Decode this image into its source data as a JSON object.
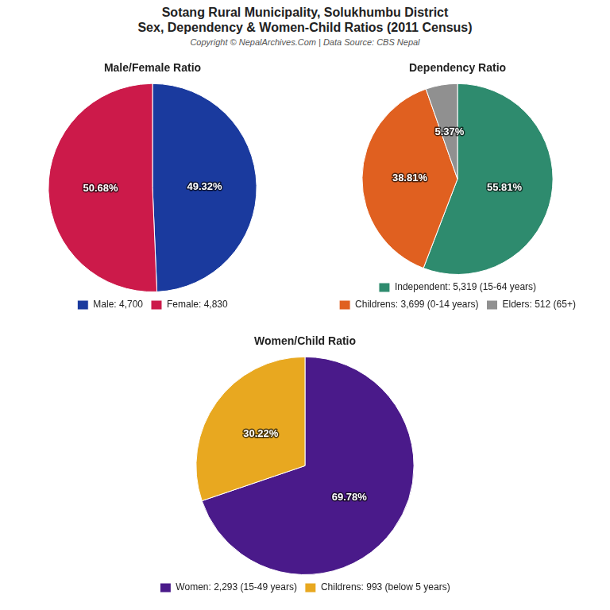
{
  "title": [
    "Sotang Rural Municipality, Solukhumbu District",
    "Sex, Dependency & Women-Child Ratios (2011 Census)"
  ],
  "subtitle": "Copyright © NepalArchives.Com | Data Source: CBS Nepal",
  "chart_data": [
    {
      "type": "pie",
      "title": "Male/Female Ratio",
      "categories": [
        "Male: 4,700",
        "Female: 4,830"
      ],
      "values": [
        49.32,
        50.68
      ],
      "value_labels": [
        "49.32%",
        "50.68%"
      ],
      "colors": [
        "#1a3a9e",
        "#cc1a4a"
      ],
      "data_labels": true,
      "legend": "bottom"
    },
    {
      "type": "pie",
      "title": "Dependency Ratio",
      "categories": [
        "Independent: 5,319 (15-64 years)",
        "Childrens: 3,699 (0-14 years)",
        "Elders: 512 (65+)"
      ],
      "values": [
        55.81,
        38.81,
        5.37
      ],
      "value_labels": [
        "55.81%",
        "38.81%",
        "5.37%"
      ],
      "colors": [
        "#2e8b6e",
        "#e06020",
        "#909090"
      ],
      "data_labels": true,
      "legend": "bottom"
    },
    {
      "type": "pie",
      "title": "Women/Child Ratio",
      "categories": [
        "Women: 2,293 (15-49 years)",
        "Childrens: 993 (below 5 years)"
      ],
      "values": [
        69.78,
        30.22
      ],
      "value_labels": [
        "69.78%",
        "30.22%"
      ],
      "colors": [
        "#4a1a8a",
        "#e8a820"
      ],
      "data_labels": true,
      "legend": "bottom"
    }
  ]
}
